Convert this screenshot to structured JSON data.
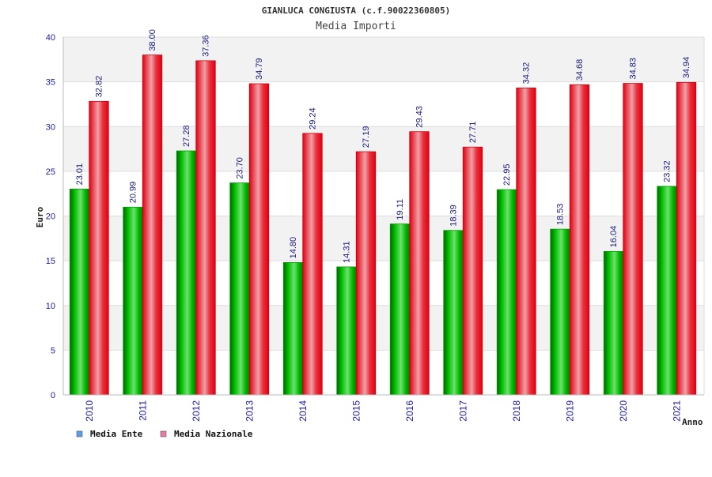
{
  "chart_data": {
    "type": "bar",
    "title": "GIANLUCA CONGIUSTA (c.f.90022360805)",
    "subtitle": "Media Importi",
    "xlabel": "Anno",
    "ylabel": "Euro",
    "ylim": [
      0,
      40
    ],
    "yticks": [
      0,
      5,
      10,
      15,
      20,
      25,
      30,
      35,
      40
    ],
    "grid": true,
    "legend_position": "bottom-left",
    "categories": [
      "2010",
      "2011",
      "2012",
      "2013",
      "2014",
      "2015",
      "2016",
      "2017",
      "2018",
      "2019",
      "2020",
      "2021"
    ],
    "series": [
      {
        "name": "Media Ente",
        "color": "#00b000",
        "legend_color": "#5a9ee8",
        "values": [
          23.01,
          20.99,
          27.28,
          23.7,
          14.8,
          14.31,
          19.11,
          18.39,
          22.95,
          18.53,
          16.04,
          23.32
        ],
        "labels": [
          "23.01",
          "20.99",
          "27.28",
          "23.70",
          "14.80",
          "14.31",
          "19.11",
          "18.39",
          "22.95",
          "18.53",
          "16.04",
          "23.32"
        ]
      },
      {
        "name": "Media Nazionale",
        "color": "#e8000f",
        "legend_color": "#e87aa8",
        "values": [
          32.82,
          38.0,
          37.36,
          34.79,
          29.24,
          27.19,
          29.43,
          27.71,
          34.32,
          34.68,
          34.83,
          34.94
        ],
        "labels": [
          "32.82",
          "38.00",
          "37.36",
          "34.79",
          "29.24",
          "27.19",
          "29.43",
          "27.71",
          "34.32",
          "34.68",
          "34.83",
          "34.94"
        ]
      }
    ]
  }
}
